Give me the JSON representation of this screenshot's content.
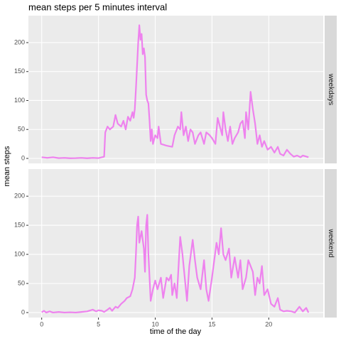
{
  "chart_data": {
    "type": "line",
    "title": "mean steps per 5 minutes interval",
    "xlabel": "time of the day",
    "ylabel": "mean steps",
    "color": "#ee82ee",
    "grid": true,
    "xlim": [
      -1.17,
      24.8
    ],
    "ylim": [
      -8.6,
      246.6
    ],
    "xticks": [
      0,
      5,
      10,
      15,
      20
    ],
    "yticks": [
      0,
      50,
      100,
      150,
      200
    ],
    "facets": [
      {
        "name": "weekdays",
        "x": [
          0,
          0.5,
          1,
          1.5,
          2,
          2.5,
          3,
          3.5,
          4,
          4.5,
          5,
          5.5,
          5.6,
          5.8,
          6,
          6.3,
          6.5,
          6.7,
          7,
          7.2,
          7.4,
          7.6,
          7.8,
          8,
          8.1,
          8.2,
          8.3,
          8.4,
          8.5,
          8.6,
          8.7,
          8.8,
          8.9,
          9,
          9.1,
          9.2,
          9.3,
          9.4,
          9.5,
          9.6,
          9.7,
          9.8,
          10,
          10.2,
          10.3,
          10.5,
          11,
          11.5,
          11.7,
          12,
          12.2,
          12.3,
          12.5,
          12.7,
          12.9,
          13.1,
          13.3,
          13.5,
          13.8,
          14,
          14.3,
          14.5,
          14.8,
          15,
          15.3,
          15.5,
          15.7,
          15.9,
          16,
          16.2,
          16.4,
          16.6,
          16.8,
          17,
          17.3,
          17.5,
          17.7,
          17.9,
          18,
          18.2,
          18.4,
          18.6,
          18.8,
          19,
          19.2,
          19.4,
          19.6,
          19.9,
          20.2,
          20.5,
          20.8,
          21,
          21.3,
          21.6,
          21.9,
          22.2,
          22.5,
          22.8,
          23,
          23.5
        ],
        "values": [
          2,
          1,
          2,
          0.5,
          1,
          0.3,
          0.5,
          1,
          0.3,
          1,
          0.5,
          3,
          45,
          55,
          50,
          55,
          75,
          60,
          55,
          65,
          50,
          72,
          65,
          80,
          70,
          85,
          120,
          160,
          200,
          230,
          205,
          215,
          180,
          190,
          175,
          110,
          100,
          95,
          65,
          30,
          50,
          25,
          40,
          35,
          55,
          25,
          22,
          20,
          40,
          55,
          50,
          80,
          40,
          55,
          30,
          50,
          45,
          25,
          40,
          45,
          25,
          45,
          40,
          35,
          25,
          70,
          55,
          40,
          80,
          50,
          30,
          55,
          25,
          35,
          45,
          60,
          65,
          35,
          80,
          50,
          115,
          85,
          60,
          25,
          40,
          20,
          30,
          15,
          20,
          10,
          20,
          8,
          5,
          15,
          8,
          3,
          5,
          2,
          5,
          2
        ]
      },
      {
        "name": "weekend",
        "x": [
          0,
          0.2,
          0.4,
          0.7,
          1,
          1.5,
          2,
          2.5,
          3,
          3.5,
          4,
          4.5,
          4.8,
          5,
          5.3,
          5.5,
          5.8,
          6,
          6.2,
          6.5,
          6.7,
          7,
          7.3,
          7.5,
          7.8,
          8,
          8.2,
          8.3,
          8.4,
          8.5,
          8.6,
          8.8,
          9,
          9.1,
          9.2,
          9.3,
          9.4,
          9.5,
          9.6,
          9.8,
          10,
          10.2,
          10.5,
          10.7,
          11,
          11.2,
          11.4,
          11.5,
          11.7,
          11.9,
          12,
          12.2,
          12.4,
          12.6,
          12.8,
          13,
          13.3,
          13.5,
          13.7,
          14,
          14.3,
          14.5,
          14.7,
          15,
          15.2,
          15.4,
          15.6,
          15.8,
          16,
          16.2,
          16.5,
          16.7,
          17,
          17.3,
          17.5,
          17.7,
          18,
          18.2,
          18.4,
          18.6,
          18.8,
          19,
          19.2,
          19.4,
          19.6,
          19.9,
          20.2,
          20.5,
          20.8,
          21,
          21.3,
          21.6,
          22,
          22.3,
          22.7,
          23,
          23.3,
          23.5
        ],
        "values": [
          0.5,
          3,
          0,
          2,
          0,
          1,
          0,
          0.5,
          0,
          1,
          2,
          5,
          2,
          4,
          3,
          1,
          5,
          8,
          3,
          10,
          8,
          15,
          20,
          25,
          28,
          40,
          60,
          100,
          150,
          165,
          120,
          140,
          110,
          70,
          150,
          168,
          100,
          60,
          20,
          40,
          55,
          40,
          60,
          25,
          60,
          55,
          65,
          30,
          50,
          25,
          60,
          130,
          100,
          60,
          20,
          80,
          125,
          90,
          60,
          40,
          90,
          40,
          20,
          60,
          90,
          120,
          100,
          145,
          100,
          90,
          110,
          60,
          95,
          60,
          90,
          40,
          60,
          90,
          80,
          70,
          30,
          60,
          50,
          80,
          30,
          40,
          15,
          10,
          25,
          5,
          2,
          3,
          2,
          0,
          10,
          2,
          8,
          0
        ]
      }
    ]
  }
}
